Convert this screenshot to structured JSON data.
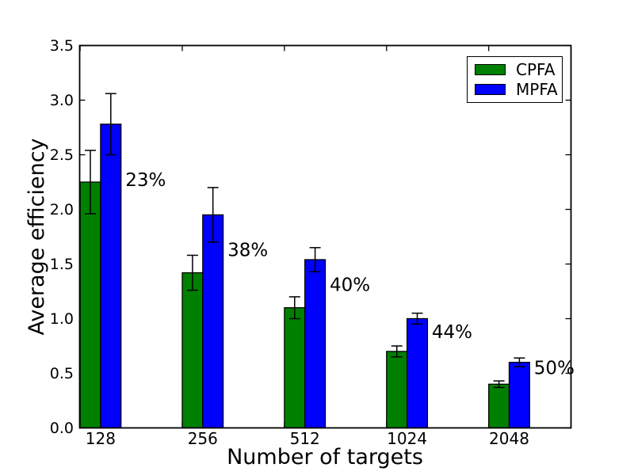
{
  "chart_data": {
    "type": "bar",
    "title": "",
    "xlabel": "Number of targets",
    "ylabel": "Average efficiency",
    "categories": [
      "128",
      "256",
      "512",
      "1024",
      "2048"
    ],
    "series": [
      {
        "name": "CPFA",
        "color": "#008000",
        "values": [
          2.25,
          1.42,
          1.1,
          0.7,
          0.4
        ],
        "errors": [
          0.29,
          0.16,
          0.1,
          0.05,
          0.03
        ]
      },
      {
        "name": "MPFA",
        "color": "#0000ff",
        "values": [
          2.78,
          1.95,
          1.54,
          1.0,
          0.6
        ],
        "errors": [
          0.28,
          0.25,
          0.11,
          0.05,
          0.04
        ]
      }
    ],
    "annotations": [
      {
        "text": "23%",
        "y": 2.27
      },
      {
        "text": "38%",
        "y": 1.63
      },
      {
        "text": "40%",
        "y": 1.31
      },
      {
        "text": "44%",
        "y": 0.88
      },
      {
        "text": "50%",
        "y": 0.55
      }
    ],
    "ylim": [
      0,
      3.5
    ],
    "ytick_step": 0.5,
    "ytick_labels": [
      "0.0",
      "0.5",
      "1.0",
      "1.5",
      "2.0",
      "2.5",
      "3.0",
      "3.5"
    ],
    "legend": {
      "position": "upper right",
      "entries": [
        "CPFA",
        "MPFA"
      ]
    },
    "grid": false,
    "bar_edge_color": "#000000",
    "error_bar_color": "#000000",
    "axis_color": "#000000",
    "background": "#ffffff"
  }
}
